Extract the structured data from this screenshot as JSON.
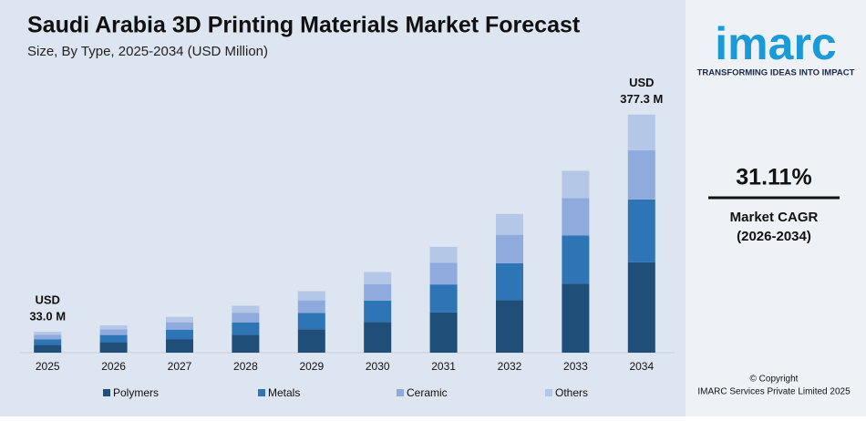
{
  "chart_data": {
    "type": "stacked_bar",
    "title": "Saudi Arabia 3D Printing Materials Market Forecast",
    "subtitle": "Size, By Type, 2025-2034 (USD Million)",
    "categories": [
      "2025",
      "2026",
      "2027",
      "2028",
      "2029",
      "2030",
      "2031",
      "2032",
      "2033",
      "2034"
    ],
    "series": [
      {
        "name": "Polymers",
        "color": "#1f4e79",
        "values": [
          12.5,
          16.5,
          21.5,
          28.3,
          37.1,
          48.6,
          63.7,
          83.5,
          109.5,
          143.1
        ]
      },
      {
        "name": "Metals",
        "color": "#2e75b6",
        "values": [
          8.8,
          11.5,
          15.0,
          19.7,
          25.8,
          33.9,
          44.4,
          58.2,
          76.4,
          99.7
        ]
      },
      {
        "name": "Ceramic",
        "color": "#8faadc",
        "values": [
          6.9,
          8.9,
          11.6,
          15.3,
          20.0,
          26.2,
          34.4,
          45.1,
          59.1,
          78.1
        ]
      },
      {
        "name": "Others",
        "color": "#b4c7e7",
        "values": [
          4.8,
          6.4,
          8.6,
          11.1,
          14.6,
          19.2,
          25.2,
          33.0,
          43.2,
          56.4
        ]
      }
    ],
    "ylim": [
      0,
      400
    ],
    "annotations": [
      {
        "category": "2025",
        "lines": [
          "USD",
          "33.0 M"
        ]
      },
      {
        "category": "2034",
        "lines": [
          "USD",
          "377.3 M"
        ]
      }
    ]
  },
  "side_panel": {
    "logo": "imarc",
    "tagline": "TRANSFORMING IDEAS INTO IMPACT",
    "cagr": "31.11%",
    "cagr_label": "Market CAGR",
    "cagr_period": "(2026-2034)",
    "copyright": "© Copyright",
    "company": "IMARC Services Private Limited 2025"
  }
}
